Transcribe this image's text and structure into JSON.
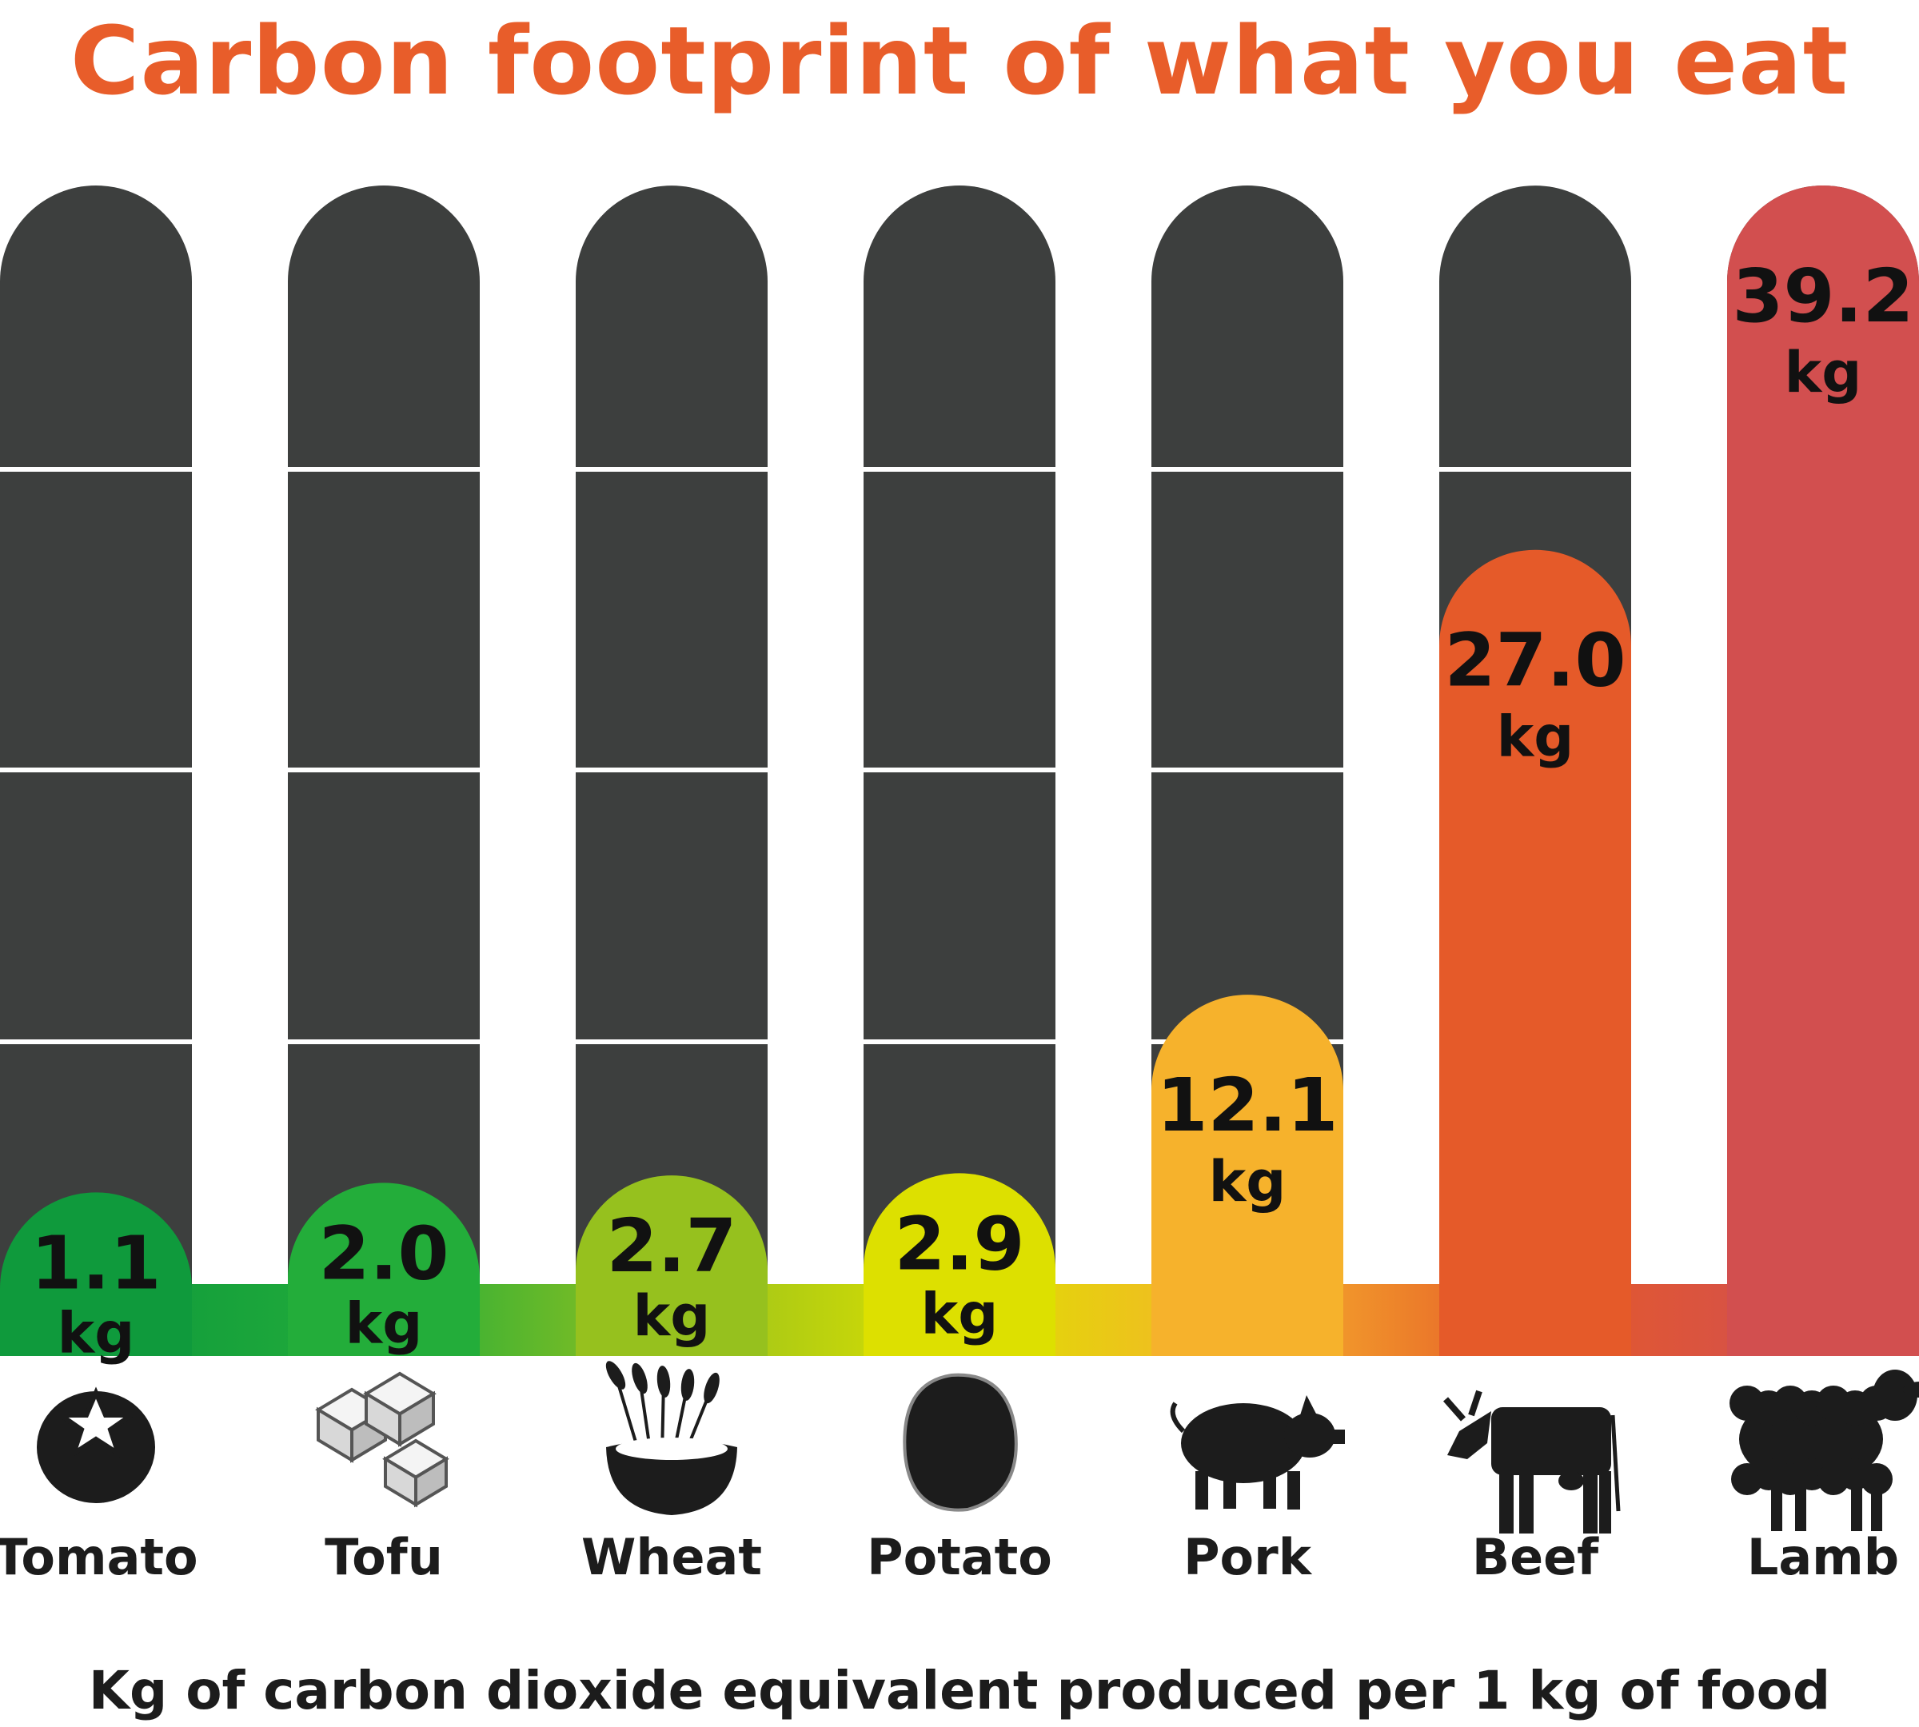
{
  "title": "Carbon footprint of what you eat",
  "footer": "Kg of carbon dioxide equivalent produced per 1 kg of food",
  "colors": {
    "title": "#e85d2a",
    "track": "#3d3f3e",
    "divider": "#ffffff",
    "value_text": "#111111"
  },
  "chart_data": {
    "type": "bar",
    "categories": [
      "Tomato",
      "Tofu",
      "Wheat",
      "Potato",
      "Pork",
      "Beef",
      "Lamb"
    ],
    "values": [
      1.1,
      2.0,
      2.7,
      2.9,
      12.1,
      27.0,
      39.2
    ],
    "value_labels": [
      "1.1",
      "2.0",
      "2.7",
      "2.9",
      "12.1",
      "27.0",
      "39.2"
    ],
    "unit": "kg",
    "colors": [
      "#0f9a3c",
      "#23ad3a",
      "#96c11e",
      "#dde000",
      "#f6b22c",
      "#e55a29",
      "#d24f4f"
    ],
    "icons": [
      "tomato-icon",
      "tofu-icon",
      "wheat-bowl-icon",
      "potato-icon",
      "pig-icon",
      "cow-icon",
      "sheep-icon"
    ],
    "ylim": [
      0,
      39.2
    ],
    "grid": true,
    "xlabel": "Kg of carbon dioxide equivalent produced per 1 kg of food",
    "ylabel": ""
  }
}
